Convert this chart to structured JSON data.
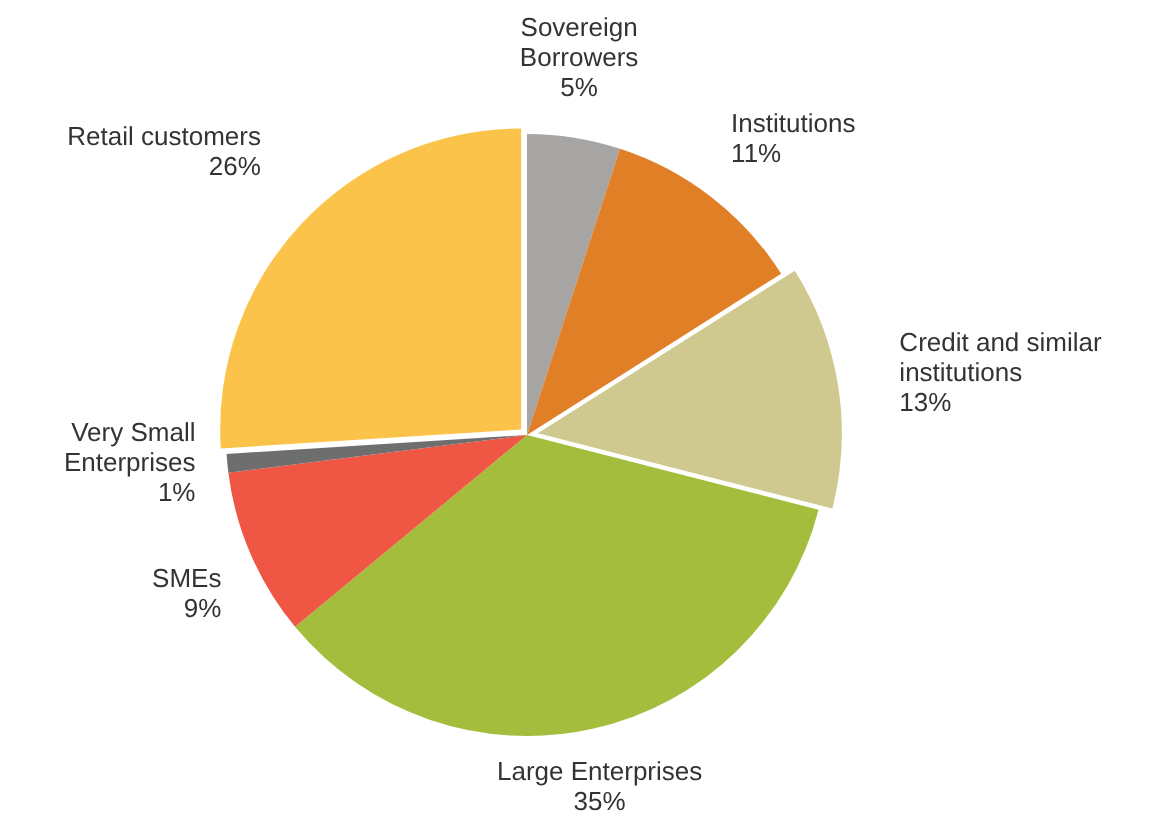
{
  "chart_data": {
    "type": "pie",
    "categories": [
      "Sovereign Borrowers",
      "Institutions",
      "Credit and similar institutions",
      "Large Enterprises",
      "SMEs",
      "Very Small Enterprises",
      "Retail customers"
    ],
    "values": [
      5,
      11,
      13,
      35,
      9,
      1,
      26
    ],
    "value_labels": [
      "5%",
      "11%",
      "13%",
      "35%",
      "9%",
      "1%",
      "26%"
    ],
    "colors": [
      "#a6a5a4",
      "#e07f26",
      "#d0c98f",
      "#a4bd3c",
      "#ef5643",
      "#6e6e6e",
      "#fcc34a"
    ],
    "legend": false
  }
}
